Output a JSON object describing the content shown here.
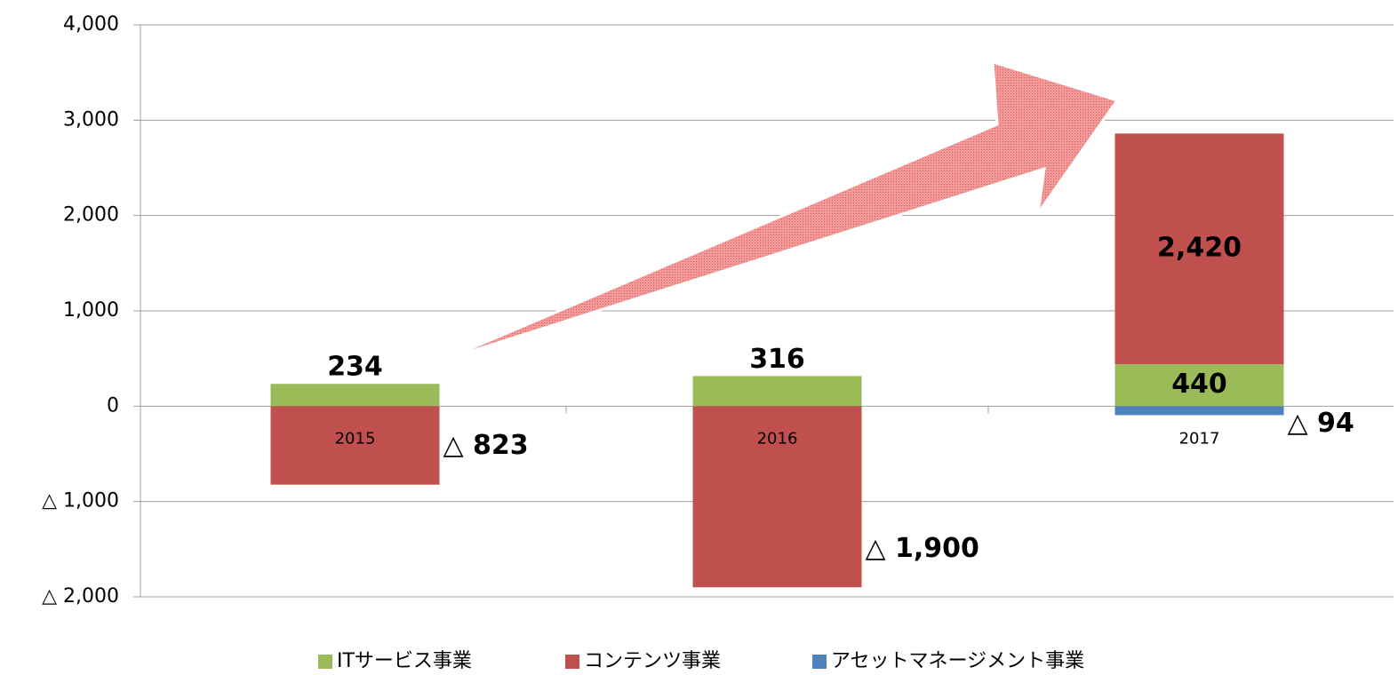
{
  "chart_data": {
    "type": "stacked_bar",
    "categories": [
      "2015",
      "2016",
      "2017"
    ],
    "series": [
      {
        "name": "ITサービス事業",
        "color": "#9bbb59",
        "values": [
          234,
          316,
          440
        ],
        "value_labels": [
          "234",
          "316",
          "440"
        ]
      },
      {
        "name": "コンテンツ事業",
        "color": "#c0504d",
        "values": [
          -823,
          -1900,
          2420
        ],
        "value_labels": [
          "△ 823",
          "△ 1,900",
          "2,420"
        ]
      },
      {
        "name": "アセットマネージメント事業",
        "color": "#4f81bd",
        "values": [
          null,
          null,
          -94
        ],
        "value_labels": [
          null,
          null,
          "△ 94"
        ]
      }
    ],
    "ylim": [
      -2000,
      4000
    ],
    "yticks": [
      {
        "value": -2000,
        "label": "△ 2,000"
      },
      {
        "value": -1000,
        "label": "△ 1,000"
      },
      0,
      {
        "value": 1000,
        "label": "1,000"
      },
      {
        "value": 2000,
        "label": "2,000"
      },
      {
        "value": 3000,
        "label": "3,000"
      },
      {
        "value": 4000,
        "label": "4,000"
      }
    ],
    "grid": true,
    "legend": "bottom"
  }
}
